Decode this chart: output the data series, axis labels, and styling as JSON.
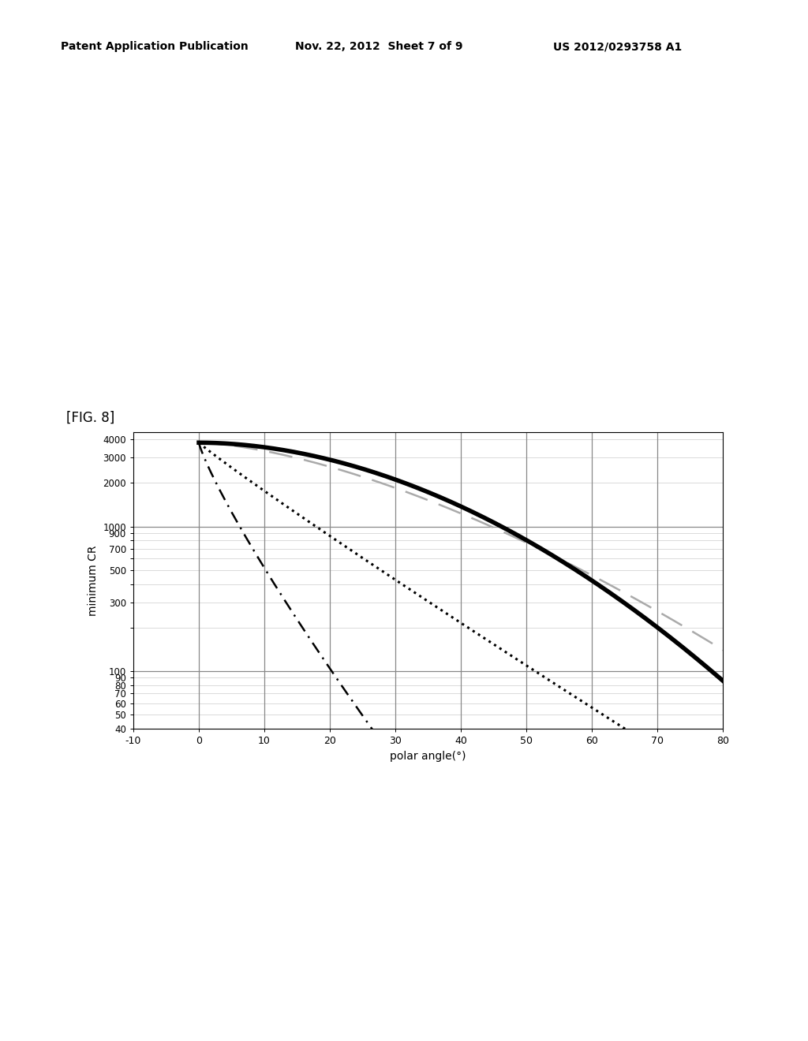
{
  "title_left": "Patent Application Publication",
  "title_mid": "Nov. 22, 2012  Sheet 7 of 9",
  "title_right": "US 2012/0293758 A1",
  "fig_label": "[FIG. 8]",
  "xlabel": "polar angle(°)",
  "ylabel": "minimum CR",
  "xmin": -10,
  "xmax": 80,
  "ymin": 40,
  "ymax": 4500,
  "ytick_vals": [
    40,
    50,
    60,
    70,
    80,
    90,
    100,
    200,
    300,
    400,
    500,
    600,
    700,
    800,
    900,
    1000,
    2000,
    3000,
    4000
  ],
  "ytick_labels": [
    "40",
    "50",
    "60",
    "70",
    "80",
    "90",
    "100",
    "",
    "300",
    "",
    "500",
    "",
    "700",
    "",
    "900",
    "1000",
    "2000",
    "3000",
    "4000"
  ],
  "xticks": [
    -10,
    0,
    10,
    20,
    30,
    40,
    50,
    60,
    70,
    80
  ],
  "hgrid_lines": [
    100,
    1000
  ],
  "vgrid_lines": [
    0,
    10,
    20,
    30,
    40,
    50,
    60,
    70
  ],
  "all_yticks": [
    40,
    50,
    60,
    70,
    80,
    90,
    100,
    200,
    300,
    400,
    500,
    600,
    700,
    800,
    900,
    1000,
    2000,
    3000,
    4000
  ],
  "bg_color": "#ffffff",
  "line1_color": "#000000",
  "line2_color": "#aaaaaa",
  "line3_color": "#000000",
  "line4_color": "#000000",
  "header_color": "#000000"
}
